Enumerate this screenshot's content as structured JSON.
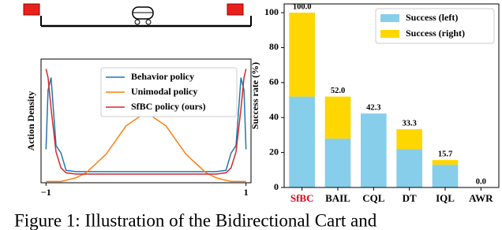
{
  "chart_data": [
    {
      "type": "line",
      "ylabel": "Action Density",
      "x": [
        -1,
        -0.98,
        -0.95,
        -0.9,
        -0.85,
        -0.8,
        -0.7,
        -0.6,
        -0.4,
        -0.2,
        0,
        0.2,
        0.4,
        0.6,
        0.7,
        0.8,
        0.85,
        0.9,
        0.95,
        0.98,
        1
      ],
      "xlim": [
        -1.05,
        1.05
      ],
      "xticks": [
        {
          "value": -1,
          "label": "−1"
        },
        1
      ],
      "ylim": [
        0,
        1
      ],
      "series": [
        {
          "name": "Behavior policy",
          "color": "#1f77b4",
          "values": [
            0.27,
            0.75,
            0.85,
            0.3,
            0.24,
            0.1,
            0.09,
            0.09,
            0.09,
            0.09,
            0.09,
            0.09,
            0.09,
            0.09,
            0.09,
            0.1,
            0.24,
            0.3,
            0.85,
            0.75,
            0.27
          ]
        },
        {
          "name": "Unimodal policy",
          "color": "#ff7f0e",
          "values": [
            0.01,
            0.01,
            0.01,
            0.01,
            0.01,
            0.02,
            0.04,
            0.08,
            0.23,
            0.46,
            0.57,
            0.46,
            0.23,
            0.08,
            0.04,
            0.02,
            0.01,
            0.01,
            0.01,
            0.01,
            0.01
          ]
        },
        {
          "name": "SfBC policy (ours)",
          "color": "#d62728",
          "values": [
            0.92,
            0.85,
            0.6,
            0.25,
            0.12,
            0.08,
            0.07,
            0.07,
            0.07,
            0.07,
            0.07,
            0.07,
            0.07,
            0.07,
            0.07,
            0.08,
            0.12,
            0.25,
            0.6,
            0.85,
            0.92
          ]
        }
      ],
      "legend": "upper right"
    },
    {
      "type": "stacked_bar",
      "ylabel": "Success rate (%)",
      "categories": [
        "SfBC",
        "BAIL",
        "CQL",
        "DT",
        "IQL",
        "AWR"
      ],
      "category_label_colors": [
        "#e8001c",
        "#000000",
        "#000000",
        "#000000",
        "#000000",
        "#000000"
      ],
      "series": [
        {
          "name": "Success (left)",
          "color": "#87ceeb",
          "values": [
            52,
            28,
            42.3,
            22,
            13,
            0
          ]
        },
        {
          "name": "Success (right)",
          "color": "#ffd700",
          "values": [
            48,
            24,
            0,
            11.3,
            2.7,
            0
          ]
        }
      ],
      "bar_labels": [
        {
          "value": 100,
          "label": "100.0"
        },
        {
          "value": 52,
          "label": "52.0"
        },
        {
          "value": 42.3,
          "label": "42.3"
        },
        {
          "value": 33.3,
          "label": "33.3"
        },
        {
          "value": 15.7,
          "label": "15.7"
        },
        {
          "value": 0,
          "label": "0.0"
        }
      ],
      "ylim": [
        0,
        105
      ],
      "yticks": [
        0,
        20,
        40,
        60,
        80,
        100
      ],
      "legend": "upper right"
    }
  ],
  "caption": "Figure 1: Illustration of the Bidirectional Cart and"
}
